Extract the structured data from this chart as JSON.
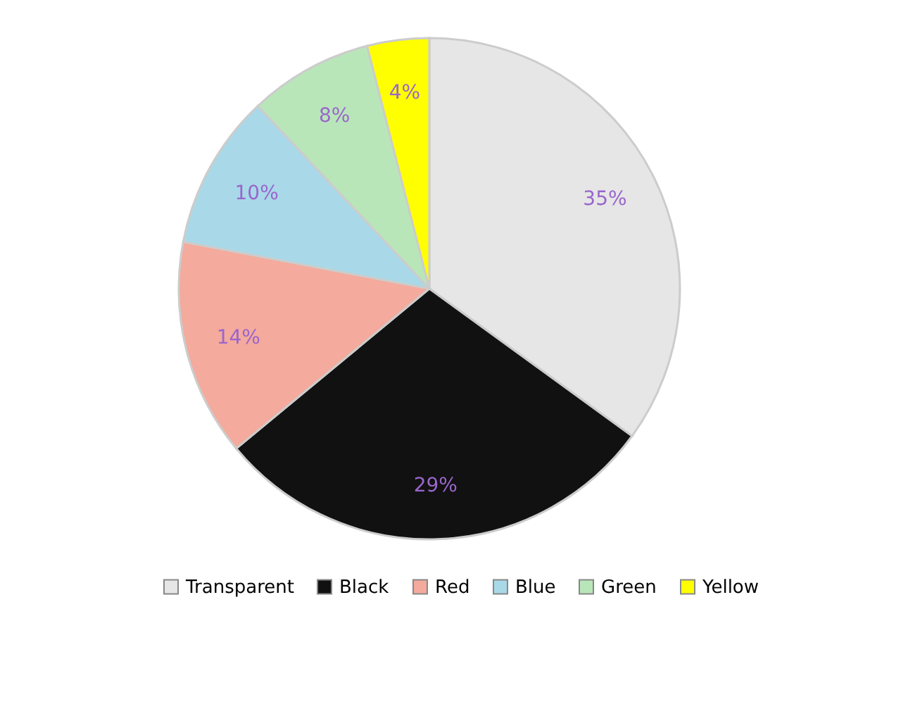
{
  "chart_data": {
    "type": "pie",
    "categories": [
      "Transparent",
      "Black",
      "Red",
      "Blue",
      "Green",
      "Yellow"
    ],
    "values": [
      35,
      29,
      14,
      10,
      8,
      4
    ],
    "value_labels": [
      "35%",
      "29%",
      "14%",
      "10%",
      "8%",
      "4%"
    ],
    "colors": [
      "#e6e6e6",
      "#111111",
      "#f4aa9c",
      "#a9d9e8",
      "#b9e6b9",
      "#ffff00"
    ],
    "legend": "bottom"
  }
}
